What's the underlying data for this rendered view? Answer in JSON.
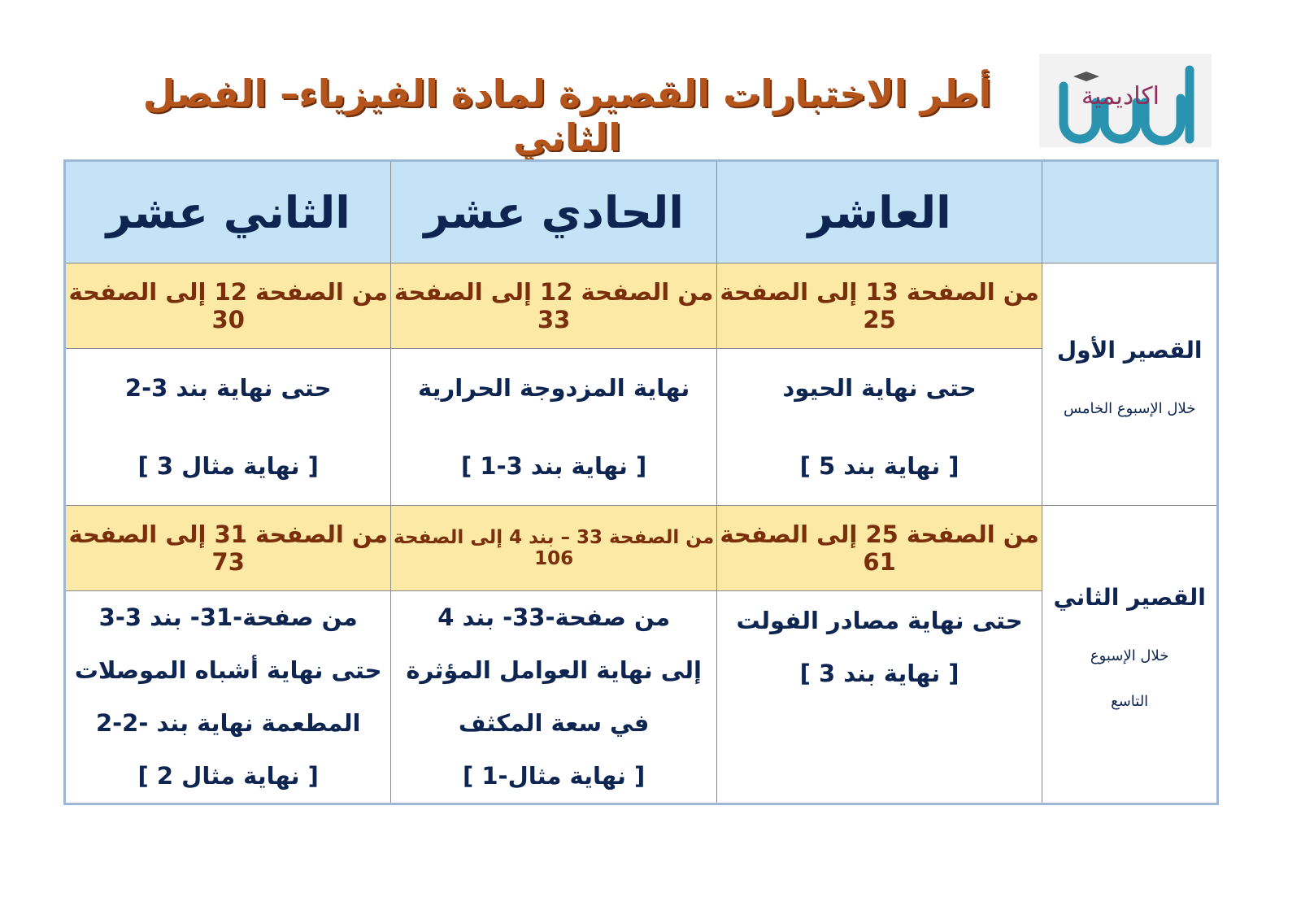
{
  "title": "أطر الاختبارات القصيرة لمادة الفيزياء– الفصل الثاني",
  "logo": {
    "text": "اكاديمية البيان"
  },
  "header": [
    "",
    "العاشر",
    "الحادي عشر",
    "الثاني عشر"
  ],
  "quizzes": [
    {
      "name": "القصير الأول",
      "when": [
        "خلال الإسبوع الخامس"
      ],
      "pages": [
        "من الصفحة 13 إلى الصفحة 25",
        "من الصفحة 12 إلى الصفحة 33",
        "من الصفحة 12 إلى الصفحة 30"
      ],
      "details": [
        [
          "حتى نهاية الحيود",
          "[ نهاية بند 5 ]"
        ],
        [
          "نهاية المزدوجة الحرارية",
          "[ نهاية بند 3-1 ]"
        ],
        [
          "حتى نهاية بند 3-2",
          "[ نهاية مثال 3 ]"
        ]
      ]
    },
    {
      "name": "القصير الثاني",
      "when": [
        "خلال الإسبوع",
        "التاسع"
      ],
      "pages": [
        "من الصفحة 25 إلى الصفحة 61",
        "من الصفحة 33 – بند 4 إلى الصفحة 106",
        "من الصفحة 31 إلى الصفحة 73"
      ],
      "details": [
        [
          "حتى نهاية مصادر الفولت",
          "[ نهاية بند 3 ]"
        ],
        [
          "من صفحة-33- بند 4",
          "إلى نهاية العوامل المؤثرة",
          "في سعة المكثف",
          "[ نهاية مثال-1 ]"
        ],
        [
          "من صفحة-31- بند 3-3",
          "حتى نهاية أشباه الموصلات",
          "المطعمة نهاية بند -2-2",
          "[ نهاية مثال 2 ]"
        ]
      ]
    }
  ],
  "colors": {
    "header_bg": "#c5e3f7",
    "pages_bg": "#fce9a6",
    "title": "#b5551c",
    "text": "#0d2550",
    "pages_text": "#7a2f0a"
  }
}
